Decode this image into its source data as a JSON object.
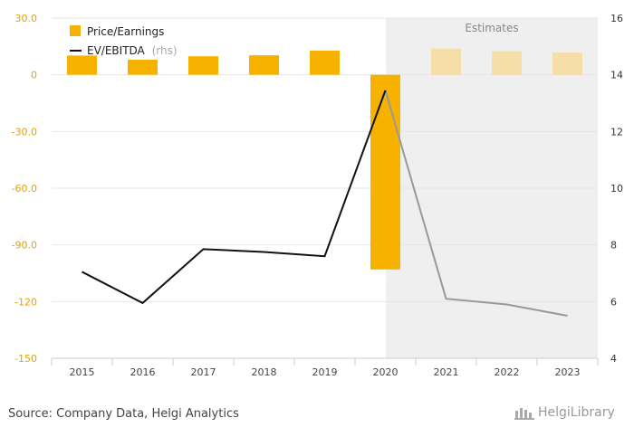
{
  "chart_data": {
    "type": "bar+line",
    "title": "",
    "categories": [
      "2015",
      "2016",
      "2017",
      "2018",
      "2019",
      "2020",
      "2021",
      "2022",
      "2023"
    ],
    "estimate_from_index": 6,
    "estimates_label": "Estimates",
    "series": [
      {
        "name": "Price/Earnings",
        "kind": "bar",
        "axis": "left",
        "values": [
          10.2,
          8.0,
          9.8,
          10.3,
          12.8,
          -103.0,
          13.8,
          12.5,
          11.8
        ],
        "color": "#f7b200",
        "estimate_color": "#f5dea8"
      },
      {
        "name": "EV/EBITDA",
        "name_suffix": "(rhs)",
        "kind": "line",
        "axis": "right",
        "values": [
          7.05,
          5.95,
          7.85,
          7.75,
          7.6,
          13.45,
          6.1,
          5.9,
          5.5
        ],
        "color": "#111111",
        "estimate_color": "#999999"
      }
    ],
    "y_left": {
      "min": -150,
      "max": 30,
      "ticks": [
        30,
        0,
        -30,
        -60,
        -90,
        -120,
        -150
      ],
      "tick_labels": [
        "30.0",
        "0",
        "-30.0",
        "-60.0",
        "-90.0",
        "-120",
        "-150"
      ]
    },
    "y_right": {
      "min": 4,
      "max": 16,
      "ticks": [
        16,
        14,
        12,
        10,
        8,
        6,
        4
      ],
      "tick_labels": [
        "16",
        "14",
        "12",
        "10",
        "8",
        "6",
        "4"
      ]
    },
    "grid": true,
    "legend": "top-left"
  },
  "footer": {
    "source": "Source: Company Data, Helgi Analytics",
    "logo_text": "HelgiLibrary"
  },
  "colors": {
    "estimate_background": "#efefef",
    "grid": "#e6e6e6",
    "left_axis_text": "#e8a200"
  }
}
